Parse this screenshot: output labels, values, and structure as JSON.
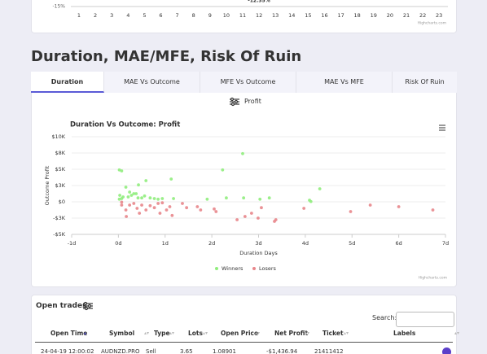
{
  "chart_data": [
    {
      "type": "bar",
      "categories": [
        "1",
        "2",
        "3",
        "4",
        "5",
        "6",
        "7",
        "8",
        "9",
        "10",
        "11",
        "12",
        "13",
        "14",
        "15",
        "16",
        "17",
        "18",
        "19",
        "20",
        "21",
        "22",
        "23"
      ],
      "yticks": [
        {
          "value": -15,
          "label": "-15%"
        }
      ],
      "annotation": "-12.35%",
      "credit": "Highcharts.com"
    },
    {
      "type": "scatter",
      "title": "Duration Vs Outcome: Profit",
      "xlabel": "Duration Days",
      "ylabel": "Outcome Profit",
      "xlim": [
        -1,
        7
      ],
      "xticks": [
        {
          "value": -1,
          "label": "-1d"
        },
        {
          "value": 0,
          "label": "0d"
        },
        {
          "value": 1,
          "label": "1d"
        },
        {
          "value": 2,
          "label": "2d"
        },
        {
          "value": 3,
          "label": "3d"
        },
        {
          "value": 4,
          "label": "4d"
        },
        {
          "value": 5,
          "label": "5d"
        },
        {
          "value": 6,
          "label": "6d"
        },
        {
          "value": 7,
          "label": "7d"
        }
      ],
      "ylim": [
        -5000,
        10000
      ],
      "yticks": [
        {
          "value": -5000,
          "label": "-$5K"
        },
        {
          "value": -2500,
          "label": "-$3K"
        },
        {
          "value": 0,
          "label": "$0"
        },
        {
          "value": 2500,
          "label": "$3K"
        },
        {
          "value": 5000,
          "label": "$5K"
        },
        {
          "value": 7500,
          "label": "$8K"
        },
        {
          "value": 10000,
          "label": "$10K"
        }
      ],
      "grid": true,
      "legend": "bottom",
      "credit": "Highcharts.com",
      "series": [
        {
          "name": "Winners",
          "color": "#90ed7d",
          "x": [
            0.02,
            0.07,
            2.66,
            2.23,
            1.13,
            0.59,
            0.43,
            4.31,
            0.16,
            0.24,
            0.33,
            0.03,
            0.1,
            0.21,
            0.42,
            0.5,
            0.68,
            0.77,
            0.85,
            0.94,
            1.18,
            1.9,
            2.31,
            2.68,
            3.03,
            3.23,
            4.09,
            4.12,
            0.02,
            0.07,
            0.28,
            0.38,
            0.56
          ],
          "values": [
            4900,
            4750,
            7400,
            4900,
            3500,
            3250,
            2600,
            2000,
            2250,
            1500,
            1250,
            1000,
            750,
            750,
            600,
            600,
            600,
            500,
            400,
            500,
            500,
            400,
            600,
            600,
            400,
            600,
            250,
            50,
            400,
            500,
            1000,
            1250,
            900
          ]
        },
        {
          "name": "Losers",
          "color": "#e8868b",
          "x": [
            0.16,
            0.17,
            0.4,
            0.45,
            0.59,
            0.77,
            0.89,
            1.03,
            1.15,
            1.37,
            1.69,
            2.05,
            2.54,
            2.71,
            2.99,
            3.06,
            3.34,
            3.37,
            3.97,
            4.97,
            5.39,
            6.0,
            6.73,
            0.07,
            0.24,
            0.33,
            0.5,
            0.68,
            0.85,
            1.1,
            1.46,
            1.76,
            2.09,
            2.85,
            0.07,
            0.94
          ],
          "values": [
            -1250,
            -2250,
            -1000,
            -1750,
            -1250,
            -900,
            -1750,
            -1250,
            -2100,
            -250,
            -750,
            -1100,
            -2750,
            -2250,
            -2500,
            -900,
            -3000,
            -2750,
            -1000,
            -1500,
            -500,
            -750,
            -1250,
            -500,
            -500,
            -250,
            -500,
            -600,
            -250,
            -750,
            -900,
            -1250,
            -1500,
            -1750,
            -50,
            -150
          ]
        }
      ]
    }
  ],
  "section": {
    "title": "Duration, MAE/MFE, Risk Of Ruin",
    "tabs": [
      "Duration",
      "MAE Vs Outcome",
      "MFE Vs Outcome",
      "MAE Vs MFE",
      "Risk Of Ruin"
    ],
    "selector": "Profit"
  },
  "table": {
    "title": "Open trades",
    "search_label": "Search:",
    "headers": [
      "Open Time",
      "Symbol",
      "Type",
      "Lots",
      "Open Price",
      "Net Profit",
      "Ticket",
      "Labels"
    ],
    "rows": [
      [
        "24-04-19 12:00:02",
        "AUDNZD.PRO",
        "Sell",
        "3.65",
        "1.08901",
        "-$1,436.94",
        "21411412"
      ]
    ]
  }
}
